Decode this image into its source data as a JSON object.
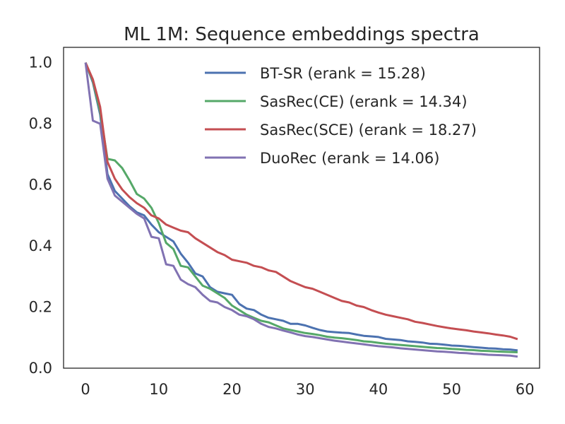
{
  "chart_data": {
    "type": "line",
    "title": "ML 1M: Sequence embeddings spectra",
    "xlabel": "",
    "ylabel": "",
    "xlim": [
      -3,
      62
    ],
    "ylim": [
      0,
      1.05
    ],
    "grid": false,
    "legend_position": "upper-right",
    "x_ticks": [
      0,
      10,
      20,
      30,
      40,
      50,
      60
    ],
    "x_tick_labels": [
      "0",
      "10",
      "20",
      "30",
      "40",
      "50",
      "60"
    ],
    "y_ticks": [
      0.0,
      0.2,
      0.4,
      0.6,
      0.8,
      1.0
    ],
    "y_tick_labels": [
      "0.0",
      "0.2",
      "0.4",
      "0.6",
      "0.8",
      "1.0"
    ],
    "x": [
      0,
      1,
      2,
      3,
      4,
      5,
      6,
      7,
      8,
      9,
      10,
      11,
      12,
      13,
      14,
      15,
      16,
      17,
      18,
      19,
      20,
      21,
      22,
      23,
      24,
      25,
      26,
      27,
      28,
      29,
      30,
      31,
      32,
      33,
      34,
      35,
      36,
      37,
      38,
      39,
      40,
      41,
      42,
      43,
      44,
      45,
      46,
      47,
      48,
      49,
      50,
      51,
      52,
      53,
      54,
      55,
      56,
      57,
      58,
      59
    ],
    "series": [
      {
        "name": "BT-SR (erank = 15.28)",
        "color": "#4c72b0",
        "values": [
          1.0,
          0.935,
          0.83,
          0.635,
          0.58,
          0.555,
          0.53,
          0.51,
          0.5,
          0.47,
          0.445,
          0.43,
          0.415,
          0.375,
          0.345,
          0.31,
          0.3,
          0.265,
          0.25,
          0.245,
          0.24,
          0.21,
          0.195,
          0.19,
          0.175,
          0.165,
          0.16,
          0.155,
          0.145,
          0.145,
          0.14,
          0.132,
          0.125,
          0.12,
          0.118,
          0.116,
          0.115,
          0.11,
          0.106,
          0.104,
          0.102,
          0.096,
          0.094,
          0.092,
          0.088,
          0.086,
          0.084,
          0.08,
          0.079,
          0.077,
          0.074,
          0.073,
          0.071,
          0.069,
          0.067,
          0.065,
          0.064,
          0.062,
          0.061,
          0.058
        ]
      },
      {
        "name": "SasRec(CE) (erank = 14.34)",
        "color": "#55a868",
        "values": [
          1.0,
          0.94,
          0.84,
          0.685,
          0.68,
          0.655,
          0.615,
          0.57,
          0.555,
          0.525,
          0.475,
          0.41,
          0.39,
          0.335,
          0.33,
          0.3,
          0.27,
          0.26,
          0.245,
          0.23,
          0.205,
          0.19,
          0.175,
          0.165,
          0.155,
          0.15,
          0.14,
          0.13,
          0.125,
          0.12,
          0.115,
          0.112,
          0.108,
          0.103,
          0.1,
          0.098,
          0.095,
          0.092,
          0.088,
          0.086,
          0.083,
          0.08,
          0.078,
          0.076,
          0.074,
          0.072,
          0.07,
          0.068,
          0.066,
          0.065,
          0.063,
          0.062,
          0.06,
          0.059,
          0.057,
          0.056,
          0.055,
          0.054,
          0.053,
          0.052
        ]
      },
      {
        "name": "SasRec(SCE) (erank = 18.27)",
        "color": "#c44e52",
        "values": [
          1.0,
          0.945,
          0.855,
          0.675,
          0.62,
          0.585,
          0.56,
          0.54,
          0.525,
          0.5,
          0.49,
          0.47,
          0.46,
          0.45,
          0.445,
          0.425,
          0.41,
          0.395,
          0.38,
          0.37,
          0.355,
          0.35,
          0.345,
          0.335,
          0.33,
          0.32,
          0.315,
          0.3,
          0.285,
          0.275,
          0.265,
          0.26,
          0.25,
          0.24,
          0.23,
          0.22,
          0.215,
          0.205,
          0.2,
          0.19,
          0.182,
          0.175,
          0.17,
          0.165,
          0.16,
          0.152,
          0.148,
          0.143,
          0.138,
          0.134,
          0.13,
          0.127,
          0.124,
          0.12,
          0.117,
          0.114,
          0.11,
          0.107,
          0.103,
          0.095
        ]
      },
      {
        "name": "DuoRec (erank = 14.06)",
        "color": "#8172b2",
        "values": [
          1.0,
          0.81,
          0.8,
          0.62,
          0.565,
          0.545,
          0.525,
          0.505,
          0.49,
          0.43,
          0.425,
          0.34,
          0.335,
          0.29,
          0.275,
          0.265,
          0.24,
          0.22,
          0.215,
          0.2,
          0.19,
          0.175,
          0.17,
          0.16,
          0.145,
          0.135,
          0.13,
          0.123,
          0.117,
          0.11,
          0.105,
          0.102,
          0.098,
          0.094,
          0.09,
          0.087,
          0.084,
          0.081,
          0.078,
          0.075,
          0.072,
          0.07,
          0.068,
          0.065,
          0.063,
          0.061,
          0.059,
          0.057,
          0.055,
          0.054,
          0.052,
          0.05,
          0.049,
          0.047,
          0.046,
          0.044,
          0.043,
          0.042,
          0.041,
          0.038
        ]
      }
    ]
  }
}
